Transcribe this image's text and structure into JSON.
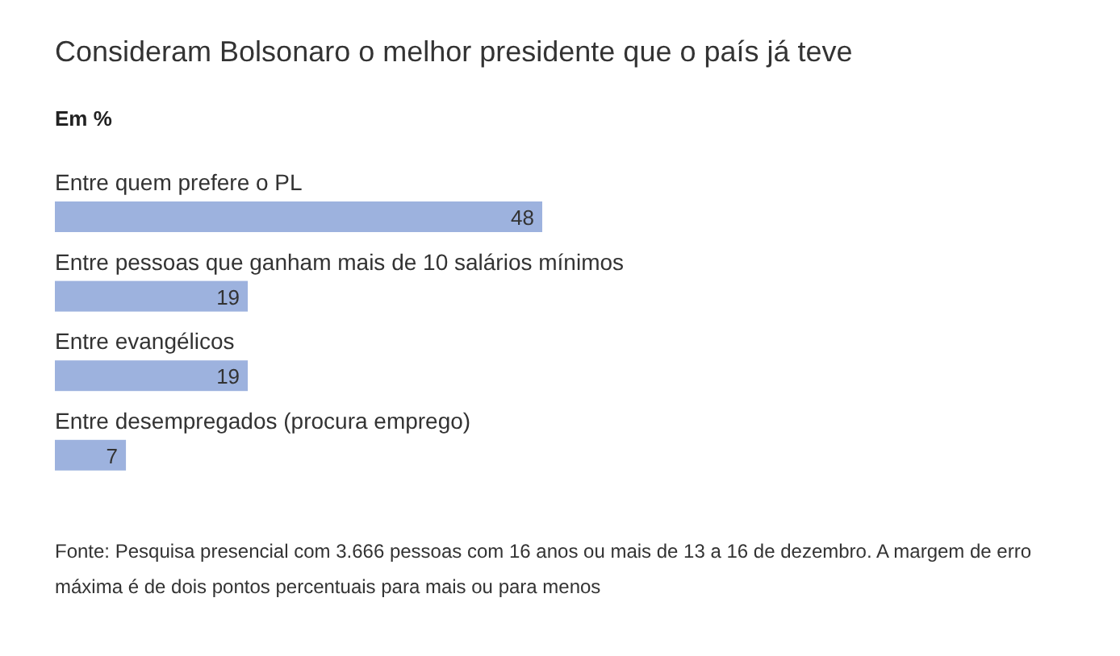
{
  "chart_data": {
    "type": "bar",
    "orientation": "horizontal",
    "title": "Consideram Bolsonaro o melhor presidente que o país já teve",
    "subtitle": "Em %",
    "categories": [
      "Entre quem prefere o PL",
      "Entre pessoas que ganham mais de 10 salários mínimos",
      "Entre evangélicos",
      "Entre desempregados (procura emprego)"
    ],
    "values": [
      48,
      19,
      19,
      7
    ],
    "color": "#9db2de",
    "data_labels": true,
    "annotations": [
      "Fonte: Pesquisa presencial com 3.666 pessoas com 16 anos ou mais de 13 a 16 de dezembro. A margem de erro máxima é de dois pontos percentuais para mais ou para menos"
    ]
  }
}
